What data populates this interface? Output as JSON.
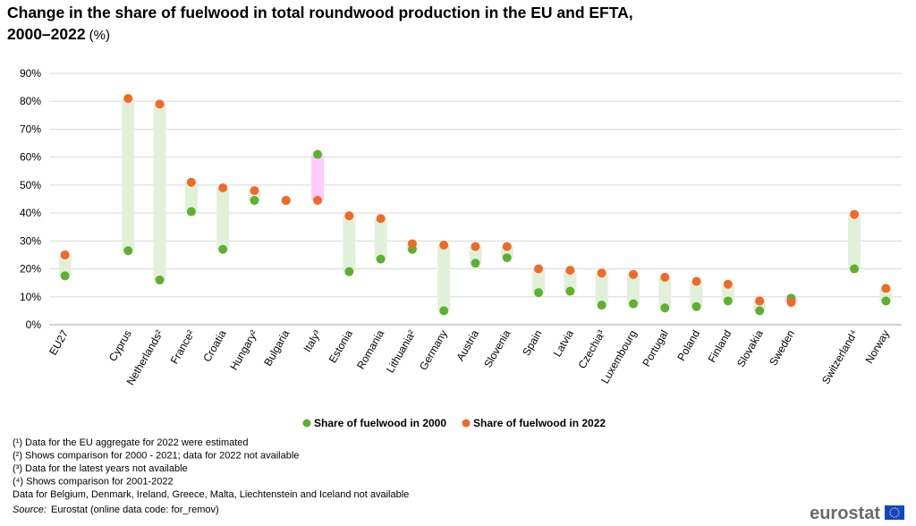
{
  "chart_data": {
    "type": "dot-range",
    "title": [
      "Change in the share of fuelwood in total roundwood production in the EU and EFTA,",
      "2000–2022"
    ],
    "unit": "(%)",
    "categories": [
      "EU27",
      null,
      "Cyprus",
      "Netherlands²",
      "France²",
      "Croatia",
      "Hungary²",
      "Bulgaria",
      "Italy³",
      "Estonia",
      "Romania",
      "Lithuania²",
      "Germany",
      "Austria",
      "Slovenia",
      "Spain",
      "Latvia",
      "Czechia³",
      "Luxembourg",
      "Portugal",
      "Poland",
      "Finland",
      "Slovakia",
      "Sweden",
      null,
      "Switzerland⁴",
      "Norway"
    ],
    "series": [
      {
        "name": "Share of fuelwood in 2000",
        "color": "#5eb030",
        "values": [
          17.5,
          null,
          26.5,
          16,
          40.5,
          27,
          44.5,
          44.5,
          61,
          19,
          23.5,
          27,
          5,
          22,
          24,
          11.5,
          12,
          7,
          7.5,
          6,
          6.5,
          8.5,
          5,
          9.5,
          null,
          20,
          8.5
        ]
      },
      {
        "name": "Share of fuelwood in 2022",
        "color": "#ef6a28",
        "values": [
          25,
          null,
          81,
          79,
          51,
          49,
          48,
          44.5,
          44.5,
          39,
          38,
          29,
          28.5,
          28,
          28,
          20,
          19.5,
          18.5,
          18,
          17,
          15.5,
          14.5,
          8.5,
          8,
          null,
          39.5,
          13
        ]
      }
    ],
    "range_colors": {
      "increase": "#e2f0d9",
      "decrease": "#ffccff"
    },
    "ylim": [
      0,
      90
    ],
    "yticks": [
      {
        "value": 0,
        "label": "0%"
      },
      {
        "value": 10,
        "label": "10%"
      },
      {
        "value": 20,
        "label": "20%"
      },
      {
        "value": 30,
        "label": "30%"
      },
      {
        "value": 40,
        "label": "40%"
      },
      {
        "value": 50,
        "label": "50%"
      },
      {
        "value": 60,
        "label": "60%"
      },
      {
        "value": 70,
        "label": "70%"
      },
      {
        "value": 80,
        "label": "80%"
      },
      {
        "value": 90,
        "label": "90%"
      }
    ],
    "grid": true,
    "legend": "bottom",
    "footnotes": [
      "(¹) Data for the EU aggregate for 2022 were estimated",
      "(²) Shows comparison for 2000 - 2021; data for 2022 not available",
      "(³) Data for the latest years not available",
      "(⁴) Shows comparison for 2001-2022",
      "Data for Belgium,  Denmark, Ireland, Greece, Malta, Liechtenstein and Iceland not available"
    ],
    "source_label": "Source:",
    "source_text": "Eurostat (online data code: for_remov)",
    "logo": "eurostat"
  }
}
